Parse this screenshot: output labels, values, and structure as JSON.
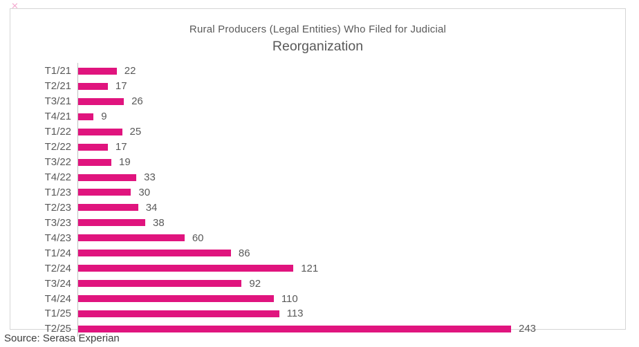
{
  "title": {
    "line1": "Rural Producers (Legal Entities) Who Filed for Judicial",
    "line2": "Reorganization"
  },
  "source": "Source: Serasa Experian",
  "colors": {
    "bar": "#e0147e",
    "label": "#595959",
    "axis": "#bfbfbf",
    "border": "#d5d5d5"
  },
  "stray_mark": "✕",
  "chart_data": {
    "type": "bar",
    "orientation": "horizontal",
    "title": "Rural Producers (Legal Entities) Who Filed for Judicial Reorganization",
    "xlabel": "",
    "ylabel": "",
    "categories": [
      "T1/21",
      "T2/21",
      "T3/21",
      "T4/21",
      "T1/22",
      "T2/22",
      "T3/22",
      "T4/22",
      "T1/23",
      "T2/23",
      "T3/23",
      "T4/23",
      "T1/24",
      "T2/24",
      "T3/24",
      "T4/24",
      "T1/25",
      "T2/25"
    ],
    "values": [
      22,
      17,
      26,
      9,
      25,
      17,
      19,
      33,
      30,
      34,
      38,
      60,
      86,
      121,
      92,
      110,
      113,
      243
    ],
    "xlim": [
      0,
      250
    ],
    "grid": false,
    "legend": false,
    "value_labels": true,
    "bar_color": "#e0147e"
  }
}
